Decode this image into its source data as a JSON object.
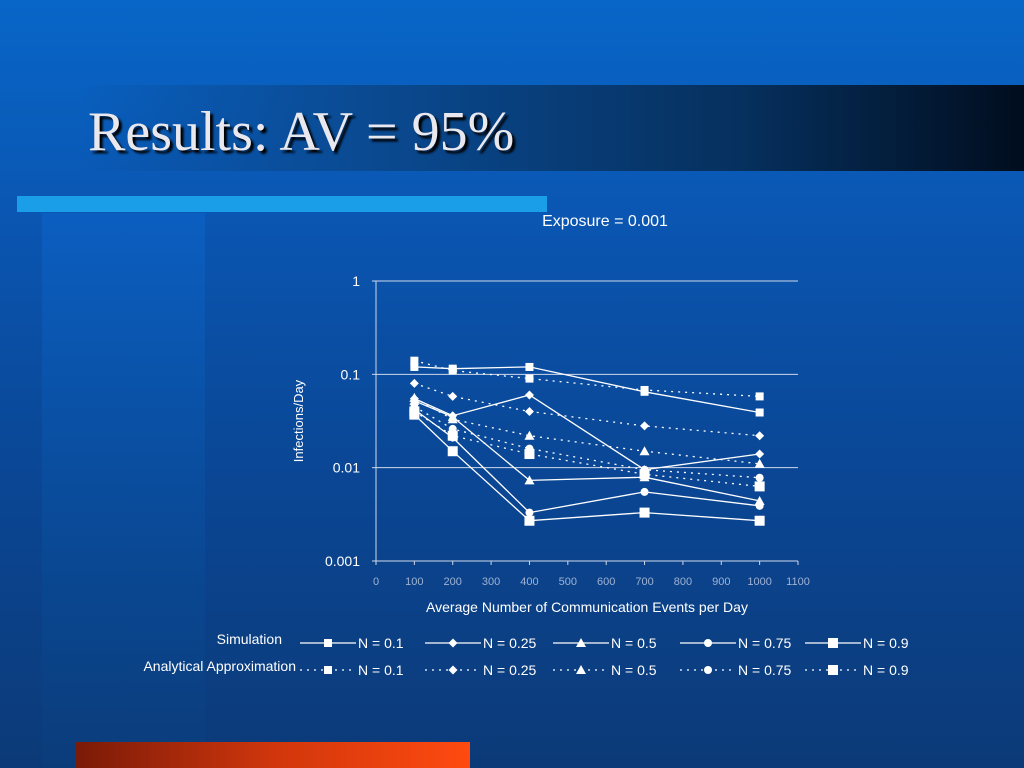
{
  "slide": {
    "title": "Results: AV = 95%"
  },
  "chart_data": {
    "type": "line",
    "title": "Exposure = 0.001",
    "xlabel": "Average Number of Communication Events per Day",
    "ylabel": "Infections/Day",
    "x_ticks": [
      "0",
      "100",
      "200",
      "300",
      "400",
      "500",
      "600",
      "700",
      "800",
      "900",
      "1000",
      "1100"
    ],
    "y_ticks": [
      "1",
      "0.1",
      "0.01",
      "0.001"
    ],
    "xlim": [
      0,
      1100
    ],
    "ylim": [
      0.001,
      1
    ],
    "y_scale": "log",
    "grid": "horizontal",
    "legend_position": "bottom",
    "legend_groups": [
      "Simulation",
      "Analytical Approximation"
    ],
    "x": [
      100,
      200,
      400,
      700,
      1000
    ],
    "series": [
      {
        "name": "N = 0.1",
        "group": "Simulation",
        "marker": "square-small",
        "line": "solid",
        "values": [
          0.12,
          0.115,
          0.12,
          0.065,
          0.039
        ]
      },
      {
        "name": "N = 0.25",
        "group": "Simulation",
        "marker": "diamond",
        "line": "solid",
        "values": [
          0.055,
          0.036,
          0.06,
          0.0095,
          0.014
        ]
      },
      {
        "name": "N = 0.5",
        "group": "Simulation",
        "marker": "triangle",
        "line": "solid",
        "values": [
          0.052,
          0.035,
          0.0073,
          0.0079,
          0.0044
        ]
      },
      {
        "name": "N = 0.75",
        "group": "Simulation",
        "marker": "circle",
        "line": "solid",
        "values": [
          0.042,
          0.021,
          0.0033,
          0.0055,
          0.0039
        ]
      },
      {
        "name": "N = 0.9",
        "group": "Simulation",
        "marker": "square",
        "line": "solid",
        "values": [
          0.037,
          0.015,
          0.0027,
          0.0033,
          0.0027
        ]
      },
      {
        "name": "N = 0.1",
        "group": "Analytical Approximation",
        "marker": "square-small",
        "line": "dotted",
        "values": [
          0.14,
          0.11,
          0.09,
          0.068,
          0.058
        ]
      },
      {
        "name": "N = 0.25",
        "group": "Analytical Approximation",
        "marker": "diamond",
        "line": "dotted",
        "values": [
          0.08,
          0.058,
          0.04,
          0.028,
          0.022
        ]
      },
      {
        "name": "N = 0.5",
        "group": "Analytical Approximation",
        "marker": "triangle",
        "line": "dotted",
        "values": [
          0.056,
          0.033,
          0.022,
          0.015,
          0.011
        ]
      },
      {
        "name": "N = 0.75",
        "group": "Analytical Approximation",
        "marker": "circle",
        "line": "dotted",
        "values": [
          0.045,
          0.026,
          0.016,
          0.0095,
          0.0078
        ]
      },
      {
        "name": "N = 0.9",
        "group": "Analytical Approximation",
        "marker": "square",
        "line": "dotted",
        "values": [
          0.04,
          0.022,
          0.014,
          0.0085,
          0.0063
        ]
      }
    ]
  }
}
